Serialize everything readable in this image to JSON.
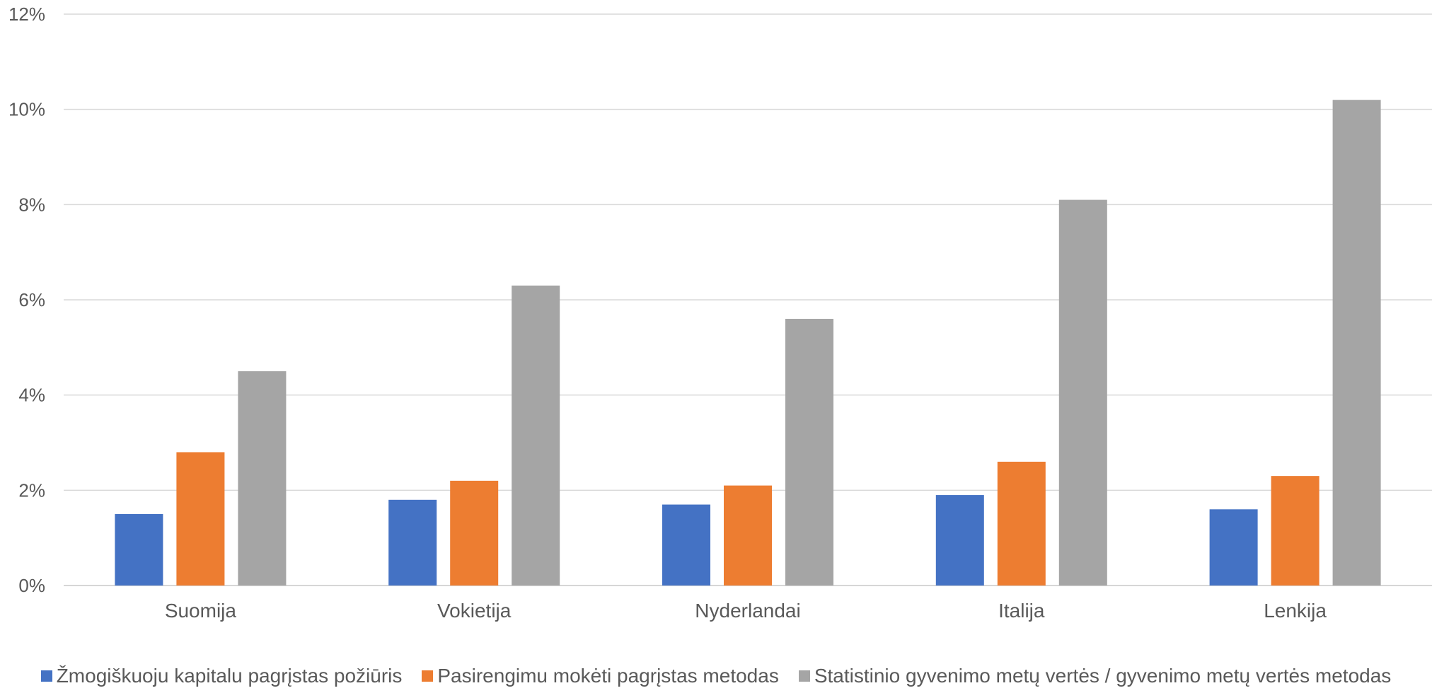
{
  "chart_data": {
    "type": "bar",
    "title": "",
    "xlabel": "",
    "ylabel": "",
    "categories": [
      "Suomija",
      "Vokietija",
      "Nyderlandai",
      "Italija",
      "Lenkija"
    ],
    "series": [
      {
        "name": "Žmogiškuoju kapitalu pagrįstas požiūris",
        "color": "#4472C4",
        "values": [
          1.5,
          1.8,
          1.7,
          1.9,
          1.6
        ]
      },
      {
        "name": "Pasirengimu mokėti pagrįstas metodas",
        "color": "#ED7D31",
        "values": [
          2.8,
          2.2,
          2.1,
          2.6,
          2.3
        ]
      },
      {
        "name": "Statistinio gyvenimo metų vertės / gyvenimo metų vertės metodas",
        "color": "#A5A5A5",
        "values": [
          4.5,
          6.3,
          5.6,
          8.1,
          10.2
        ]
      }
    ],
    "ylim": [
      0,
      12
    ],
    "yticks": [
      "0%",
      "2%",
      "4%",
      "6%",
      "8%",
      "10%",
      "12%"
    ],
    "grid": true,
    "legend_position": "bottom"
  }
}
